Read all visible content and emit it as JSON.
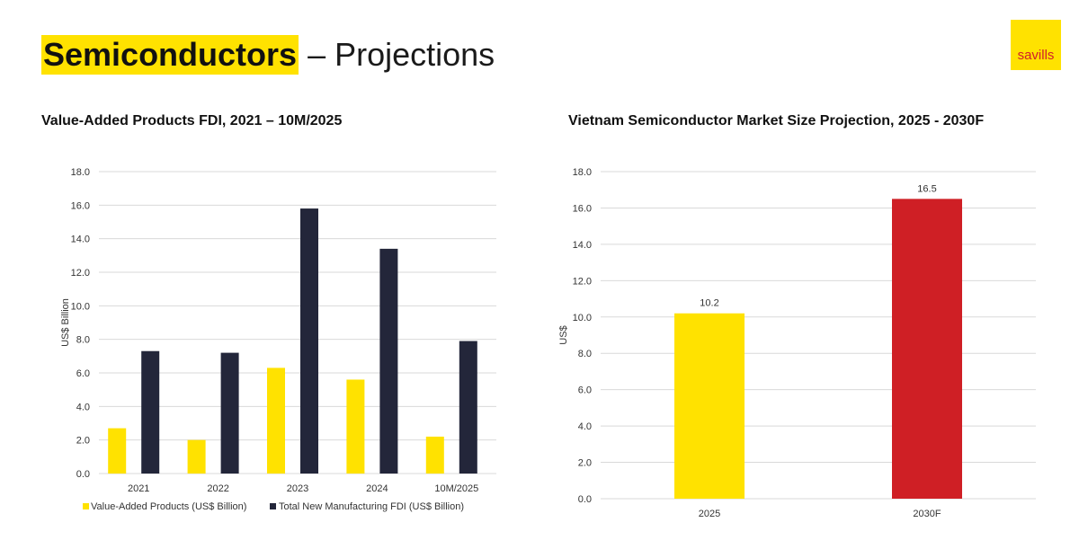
{
  "header": {
    "title_highlight": "Semiconductors",
    "title_rest": "– Projections"
  },
  "logo": {
    "text": "savills"
  },
  "colors": {
    "yellow": "#ffe200",
    "navy": "#23263a",
    "red": "#cf1f25",
    "grid": "#d9d9d9"
  },
  "chart_data": [
    {
      "type": "bar",
      "title": "Value-Added Products FDI, 2021 – 10M/2025",
      "categories": [
        "2021",
        "2022",
        "2023",
        "2024",
        "10M/2025"
      ],
      "series": [
        {
          "name": "Value-Added Products (US$ Billion)",
          "values": [
            2.7,
            2.0,
            6.3,
            5.6,
            2.2
          ]
        },
        {
          "name": "Total New Manufacturing FDI (US$ Billion)",
          "values": [
            7.3,
            7.2,
            15.8,
            13.4,
            7.9
          ]
        }
      ],
      "ylabel": "US$ Billion",
      "ylim": [
        0,
        18
      ],
      "yticks": [
        "0.0",
        "2.0",
        "4.0",
        "6.0",
        "8.0",
        "10.0",
        "12.0",
        "14.0",
        "16.0",
        "18.0"
      ],
      "legend": "bottom"
    },
    {
      "type": "bar",
      "title": "Vietnam Semiconductor Market Size Projection, 2025 - 2030F",
      "categories": [
        "2025",
        "2030F"
      ],
      "values": [
        10.2,
        16.5
      ],
      "data_labels": [
        "10.2",
        "16.5"
      ],
      "ylabel": "US$",
      "ylim": [
        0,
        18
      ],
      "yticks": [
        "0.0",
        "2.0",
        "4.0",
        "6.0",
        "8.0",
        "10.0",
        "12.0",
        "14.0",
        "16.0",
        "18.0"
      ]
    }
  ]
}
